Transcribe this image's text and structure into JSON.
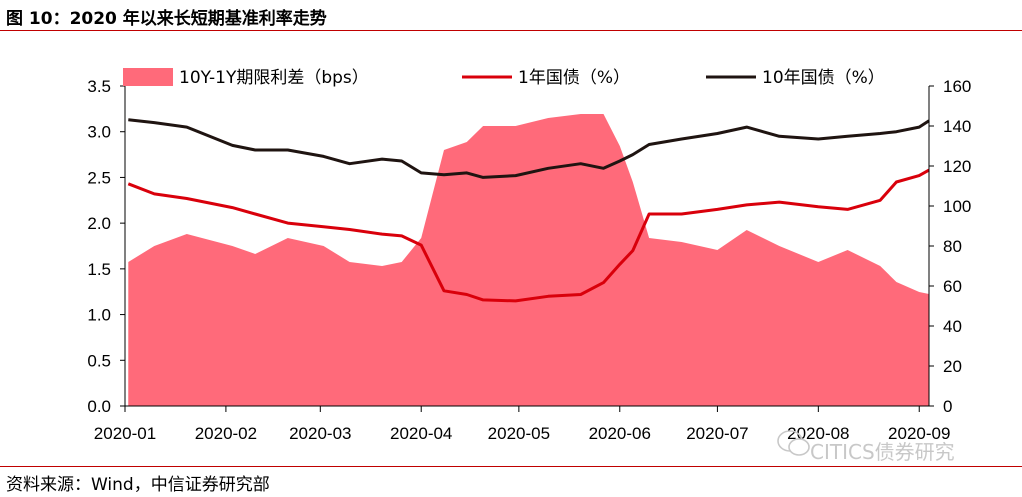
{
  "title": "图 10：2020 年以来长短期基准利率走势",
  "source": "资料来源：Wind，中信证券研究部",
  "watermark": "CITICS债券研究",
  "chart_data": {
    "type": "line",
    "x_dates": [
      "2020-01-02",
      "2020-01-10",
      "2020-01-20",
      "2020-02-03",
      "2020-02-10",
      "2020-02-20",
      "2020-03-02",
      "2020-03-10",
      "2020-03-20",
      "2020-03-26",
      "2020-04-01",
      "2020-04-08",
      "2020-04-15",
      "2020-04-20",
      "2020-04-30",
      "2020-05-10",
      "2020-05-20",
      "2020-05-27",
      "2020-06-01",
      "2020-06-05",
      "2020-06-10",
      "2020-06-20",
      "2020-07-01",
      "2020-07-10",
      "2020-07-20",
      "2020-08-01",
      "2020-08-10",
      "2020-08-20",
      "2020-08-25",
      "2020-09-01",
      "2020-09-04"
    ],
    "x_tick_labels": [
      "2020-01",
      "2020-02",
      "2020-03",
      "2020-04",
      "2020-05",
      "2020-06",
      "2020-07",
      "2020-08",
      "2020-09"
    ],
    "x_tick_dates": [
      "2020-01-01",
      "2020-02-01",
      "2020-03-01",
      "2020-04-01",
      "2020-05-01",
      "2020-06-01",
      "2020-07-01",
      "2020-08-01",
      "2020-09-01"
    ],
    "x_range": [
      "2020-01-01",
      "2020-09-04"
    ],
    "left_axis": {
      "ylim": [
        0,
        3.5
      ],
      "ticks": [
        "0.0",
        "0.5",
        "1.0",
        "1.5",
        "2.0",
        "2.5",
        "3.0",
        "3.5"
      ]
    },
    "right_axis": {
      "ylim": [
        0,
        160
      ],
      "ticks": [
        "0",
        "20",
        "40",
        "60",
        "80",
        "100",
        "120",
        "140",
        "160"
      ]
    },
    "series": [
      {
        "name": "10Y-1Y期限利差（bps）",
        "type": "area",
        "axis": "right",
        "color": "#ff6a7a",
        "values": [
          72,
          80,
          86,
          80,
          76,
          84,
          80,
          72,
          70,
          72,
          84,
          128,
          132,
          140,
          140,
          144,
          146,
          146,
          130,
          112,
          84,
          82,
          78,
          88,
          80,
          72,
          78,
          70,
          62,
          57,
          56
        ]
      },
      {
        "name": "1年国债（%）",
        "type": "line",
        "axis": "left",
        "color": "#d9000b",
        "values": [
          2.43,
          2.32,
          2.27,
          2.17,
          2.1,
          2.0,
          1.96,
          1.93,
          1.88,
          1.86,
          1.76,
          1.26,
          1.22,
          1.16,
          1.15,
          1.2,
          1.22,
          1.35,
          1.55,
          1.7,
          2.1,
          2.1,
          2.15,
          2.2,
          2.23,
          2.18,
          2.15,
          2.25,
          2.45,
          2.52,
          2.58
        ]
      },
      {
        "name": "10年国债（%）",
        "type": "line",
        "axis": "left",
        "color": "#1f1411",
        "values": [
          3.13,
          3.1,
          3.05,
          2.85,
          2.8,
          2.8,
          2.73,
          2.65,
          2.7,
          2.68,
          2.55,
          2.53,
          2.55,
          2.5,
          2.52,
          2.6,
          2.65,
          2.6,
          2.68,
          2.75,
          2.86,
          2.92,
          2.98,
          3.05,
          2.95,
          2.92,
          2.95,
          2.98,
          3.0,
          3.05,
          3.12
        ]
      }
    ],
    "legend_position": "top",
    "grid": false
  }
}
